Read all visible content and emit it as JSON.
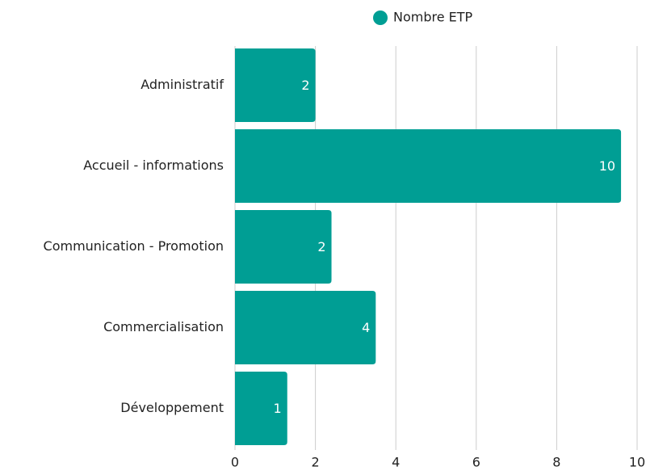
{
  "chart_data": {
    "type": "bar",
    "orientation": "horizontal",
    "categories": [
      "Administratif",
      "Accueil - informations",
      "Communication - Promotion",
      "Commercialisation",
      "Développement"
    ],
    "series": [
      {
        "name": "Nombre ETP",
        "color": "#009e94",
        "values": [
          2,
          9.6,
          2.4,
          3.5,
          1.3
        ],
        "value_labels": [
          "2",
          "10",
          "2",
          "4",
          "1"
        ]
      }
    ],
    "xlim": [
      0,
      10
    ],
    "xticks": [
      0,
      2,
      4,
      6,
      8,
      10
    ],
    "grid": true,
    "legend": "top"
  }
}
